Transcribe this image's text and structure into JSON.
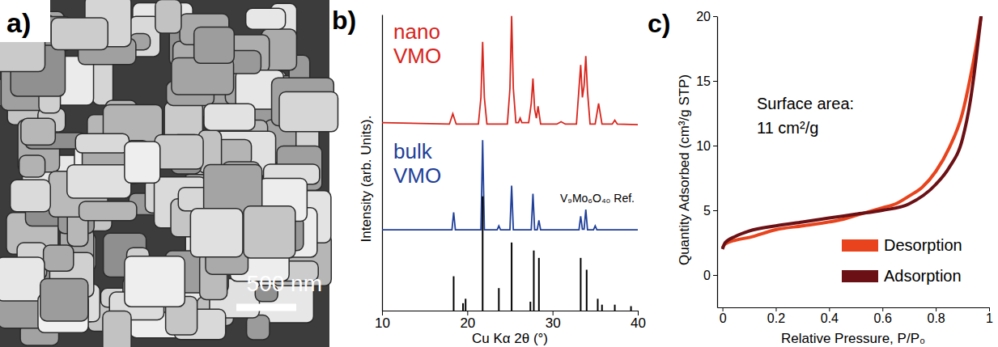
{
  "chart_data": [
    {
      "type": "image",
      "title": "a)",
      "annotations": [
        "500 nm"
      ]
    },
    {
      "type": "line",
      "title": "b)",
      "x_label": "Cu Kα 2θ (°)",
      "y_label": "Intensity (arb. Units).",
      "xlim": [
        10,
        40
      ],
      "xticks": [
        10,
        20,
        30,
        40
      ],
      "ylim": [
        0,
        100
      ],
      "tick_labels": "x",
      "series": [
        {
          "name": "nano VMO",
          "color": "#d8251c",
          "x": [
            10,
            17.9,
            18.3,
            18.7,
            21.3,
            21.6,
            21.8,
            22.0,
            22.3,
            24.7,
            25.0,
            25.2,
            25.4,
            25.7,
            26.0,
            26.2,
            26.4,
            27.2,
            27.5,
            27.7,
            27.9,
            28.1,
            28.3,
            28.6,
            30.5,
            31.0,
            31.5,
            32.8,
            33.1,
            33.3,
            33.5,
            33.7,
            33.9,
            34.1,
            34.4,
            35.0,
            35.4,
            35.8,
            37.0,
            37.3,
            37.6,
            40
          ],
          "values": [
            63.5,
            63,
            66.5,
            63,
            63,
            72,
            90.8,
            72,
            63,
            63,
            75,
            99.5,
            75,
            63.5,
            63.5,
            65,
            63.5,
            63.5,
            70,
            78.4,
            68,
            65,
            69,
            63,
            63,
            63.8,
            63,
            63,
            75,
            83,
            72,
            76,
            86,
            74,
            63,
            63,
            70,
            63,
            63,
            64.3,
            63,
            62.8
          ]
        },
        {
          "name": "bulk VMO",
          "color": "#1f3f99",
          "x": [
            10,
            18.2,
            18.4,
            18.6,
            21.6,
            21.8,
            22.0,
            23.5,
            23.7,
            23.9,
            25.0,
            25.2,
            25.4,
            27.5,
            27.7,
            27.9,
            28.2,
            28.4,
            28.6,
            33.1,
            33.3,
            33.5,
            33.7,
            33.9,
            34.1,
            34.8,
            35.0,
            35.2,
            40
          ],
          "values": [
            27.3,
            27.3,
            33.2,
            27.3,
            27.3,
            57.6,
            27.3,
            27.3,
            28.6,
            27.3,
            27.3,
            42.2,
            27.3,
            27.3,
            39.5,
            27.3,
            27.3,
            30.5,
            27.3,
            27.3,
            31.9,
            27.5,
            27.5,
            34.1,
            27.3,
            27.3,
            28.6,
            27.3,
            27.3
          ]
        },
        {
          "name": "V₉Mo₆O₄₀ Ref.",
          "color": "#000000",
          "type": "bar",
          "x": [
            18.4,
            19.5,
            19.8,
            21.8,
            23.7,
            25.2,
            27.4,
            27.8,
            28.4,
            33.3,
            34.0,
            35.3,
            35.8,
            37.3,
            39.2
          ],
          "values": [
            11.6,
            2.5,
            4,
            38.6,
            7.6,
            23,
            3,
            20.3,
            17.8,
            17.8,
            13.8,
            4,
            2,
            2,
            1.5
          ]
        }
      ]
    },
    {
      "type": "line",
      "title": "c)",
      "x_label": "Relative Pressure, P/P₀",
      "y_label": "Quantity Adsorbed (cm³/g STP)",
      "xlim": [
        -0.02,
        1
      ],
      "xticks": [
        0,
        0.2,
        0.4,
        0.6,
        0.8,
        1
      ],
      "ylim": [
        -2.5,
        20
      ],
      "yticks": [
        0,
        5,
        10,
        15,
        20
      ],
      "legend": "lower right",
      "annotations": [
        "Surface area:",
        "11 cm²/g"
      ],
      "series": [
        {
          "name": "Desorption",
          "color": "#e8431c",
          "x": [
            0,
            0.01,
            0.05,
            0.1,
            0.2,
            0.3,
            0.4,
            0.45,
            0.5,
            0.6,
            0.65,
            0.7,
            0.75,
            0.8,
            0.85,
            0.9,
            0.93,
            0.95,
            0.97
          ],
          "values": [
            2.1,
            2.4,
            2.7,
            2.9,
            3.5,
            3.8,
            4.1,
            4.3,
            4.6,
            5.2,
            5.5,
            6.1,
            6.8,
            8.0,
            9.8,
            12.5,
            15.3,
            17.5,
            20
          ]
        },
        {
          "name": "Adsorption",
          "color": "#6b1014",
          "x": [
            0,
            0.01,
            0.05,
            0.1,
            0.2,
            0.3,
            0.4,
            0.5,
            0.6,
            0.7,
            0.8,
            0.85,
            0.9,
            0.93,
            0.95,
            0.97
          ],
          "values": [
            2,
            2.5,
            3.0,
            3.4,
            3.8,
            4.1,
            4.4,
            4.7,
            5.0,
            5.5,
            7.0,
            8.3,
            10.5,
            13.5,
            16.5,
            20
          ]
        }
      ]
    }
  ]
}
